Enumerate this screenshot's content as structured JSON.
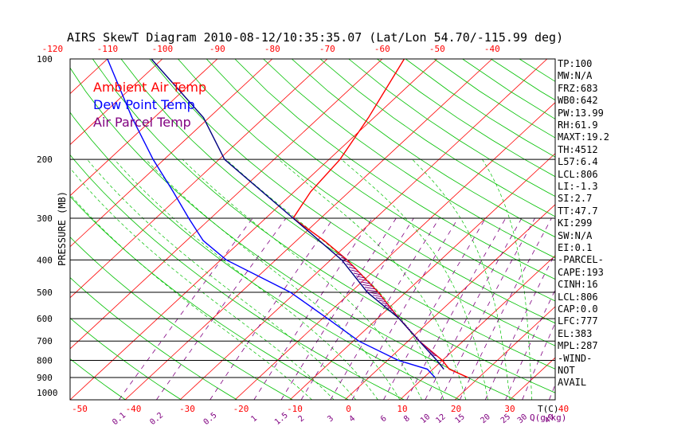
{
  "chart_data": {
    "type": "skewt",
    "title": "AIRS SkewT Diagram 2010-08-12/10:35:35.07 (Lat/Lon 54.70/-115.99 deg)",
    "ylabel": "PRESSURE (MB)",
    "pressure_ticks": [
      "100",
      "200",
      "300",
      "400",
      "500",
      "600",
      "700",
      "800",
      "900",
      "1000"
    ],
    "top_temp_ticks": [
      "-120",
      "-110",
      "-100",
      "-90",
      "-80",
      "-70",
      "-60",
      "-50",
      "-40"
    ],
    "bottom_temp_ticks": [
      "-50",
      "-40",
      "-30",
      "-20",
      "-10",
      "0",
      "10",
      "20",
      "30",
      "40"
    ],
    "bottom_temp_unit": "T(C)",
    "mixing_ratio_ticks": [
      "0.1",
      "0.2",
      "0.5",
      "1",
      "1.5",
      "2",
      "3",
      "4",
      "6",
      "8",
      "10",
      "12",
      "15",
      "20",
      "25",
      "30",
      "40"
    ],
    "mixing_ratio_unit": "Q(g/kg)",
    "legend": [
      {
        "label": "Ambient Air Temp",
        "color": "#ff0000"
      },
      {
        "label": "Dew Point Temp",
        "color": "#0000ff"
      },
      {
        "label": "Air Parcel Temp",
        "color": "#000080"
      }
    ],
    "series": [
      {
        "name": "Ambient Air Temp",
        "p": [
          900,
          850,
          800,
          700,
          600,
          500,
          400,
          350,
          300,
          250,
          200,
          150,
          100
        ],
        "t": [
          18,
          13,
          10,
          2,
          -6,
          -15,
          -27,
          -35,
          -45,
          -47,
          -48,
          -51,
          -56
        ]
      },
      {
        "name": "Dew Point Temp",
        "p": [
          900,
          850,
          800,
          700,
          600,
          500,
          400,
          350,
          300,
          250,
          200,
          150,
          100
        ],
        "t": [
          12,
          9,
          2,
          -9,
          -19,
          -31,
          -49,
          -57,
          -64,
          -72,
          -82,
          -94,
          -110
        ]
      },
      {
        "name": "Air Parcel Temp",
        "p": [
          850,
          800,
          700,
          600,
          500,
          400,
          300,
          200,
          150,
          100
        ],
        "t": [
          12,
          9,
          2,
          -6,
          -17,
          -28,
          -45,
          -69,
          -81,
          -102
        ]
      }
    ],
    "stats": [
      "TP:100",
      "MW:N/A",
      "FRZ:683",
      "WB0:642",
      "PW:13.99",
      "RH:61.9",
      "MAXT:19.2",
      "TH:4512",
      "L57:6.4",
      "LCL:806",
      "LI:-1.3",
      "SI:2.7",
      "TT:47.7",
      "KI:299",
      "SW:N/A",
      "EI:0.1",
      "-PARCEL-",
      "CAPE:193",
      "CINH:16",
      "LCL:806",
      "CAP:0.0",
      "LFC:777",
      "EL:383",
      "MPL:287",
      "-WIND-",
      "NOT",
      "AVAIL"
    ]
  }
}
